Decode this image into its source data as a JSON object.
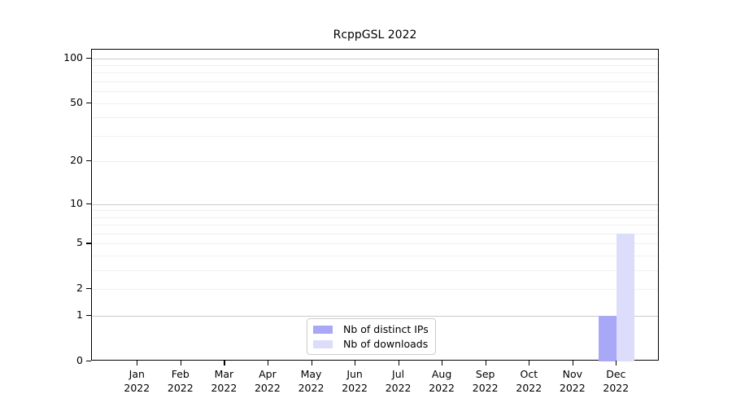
{
  "title": "RcppGSL 2022",
  "colors": {
    "distinct_ips": "#a8a8f7",
    "downloads": "#dcdcfb",
    "grid_major": "#c9c9c9",
    "grid_minor": "#f0f0f0",
    "axis": "#000000",
    "legend_border": "#cccccc"
  },
  "legend": {
    "items": [
      {
        "label": "Nb of distinct IPs",
        "color_key": "distinct_ips"
      },
      {
        "label": "Nb of downloads",
        "color_key": "downloads"
      }
    ]
  },
  "chart_data": {
    "type": "bar",
    "title": "RcppGSL 2022",
    "categories": [
      "Jan 2022",
      "Feb 2022",
      "Mar 2022",
      "Apr 2022",
      "May 2022",
      "Jun 2022",
      "Jul 2022",
      "Aug 2022",
      "Sep 2022",
      "Oct 2022",
      "Nov 2022",
      "Dec 2022"
    ],
    "x_tick_line1": [
      "Jan",
      "Feb",
      "Mar",
      "Apr",
      "May",
      "Jun",
      "Jul",
      "Aug",
      "Sep",
      "Oct",
      "Nov",
      "Dec"
    ],
    "x_tick_line2": "2022",
    "series": [
      {
        "name": "Nb of distinct IPs",
        "color_key": "distinct_ips",
        "values": [
          0,
          0,
          0,
          0,
          0,
          0,
          0,
          0,
          0,
          0,
          0,
          1
        ]
      },
      {
        "name": "Nb of downloads",
        "color_key": "downloads",
        "values": [
          0,
          0,
          0,
          0,
          0,
          0,
          0,
          0,
          0,
          0,
          0,
          6
        ]
      }
    ],
    "y_scale": "log1p",
    "y_ticks": [
      0,
      1,
      2,
      5,
      10,
      20,
      50,
      100
    ],
    "y_major_gridlines": [
      1,
      10,
      100
    ],
    "y_minor_gridlines": [
      2,
      3,
      4,
      5,
      6,
      7,
      8,
      9,
      20,
      30,
      40,
      50,
      60,
      70,
      80,
      90
    ],
    "ylim": [
      0,
      115
    ],
    "xlabel": "",
    "ylabel": "",
    "grid": "horizontal",
    "legend_position": "lower center"
  }
}
